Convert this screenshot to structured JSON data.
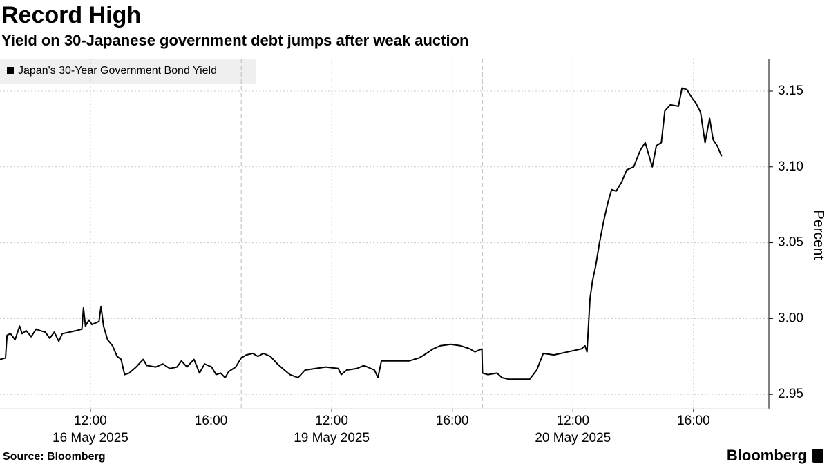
{
  "chart_data": {
    "type": "line",
    "title": "Record High",
    "subtitle": "Yield on 30-Japanese government debt jumps after weak auction",
    "y_label": "Percent",
    "source": "Source: Bloomberg",
    "brand": "Bloomberg",
    "legend": "top-left",
    "grid": true,
    "series": [
      {
        "name": "Japan's 30-Year Government Bond Yield",
        "color": "#000000",
        "x": [
          "16 May 2025 09:00",
          "16 May 2025 09:11",
          "16 May 2025 09:14",
          "16 May 2025 09:21",
          "16 May 2025 09:30",
          "16 May 2025 09:39",
          "16 May 2025 09:44",
          "16 May 2025 09:52",
          "16 May 2025 10:02",
          "16 May 2025 10:12",
          "16 May 2025 10:20",
          "16 May 2025 10:30",
          "16 May 2025 10:39",
          "16 May 2025 10:48",
          "16 May 2025 10:57",
          "16 May 2025 11:04",
          "16 May 2025 11:18",
          "16 May 2025 11:32",
          "16 May 2025 11:43",
          "16 May 2025 11:46",
          "16 May 2025 11:50",
          "16 May 2025 11:57",
          "16 May 2025 12:03",
          "16 May 2025 12:17",
          "16 May 2025 12:21",
          "16 May 2025 12:26",
          "16 May 2025 12:34",
          "16 May 2025 12:44",
          "16 May 2025 12:53",
          "16 May 2025 13:01",
          "16 May 2025 13:08",
          "16 May 2025 13:17",
          "16 May 2025 13:31",
          "16 May 2025 13:45",
          "16 May 2025 13:52",
          "16 May 2025 14:10",
          "16 May 2025 14:24",
          "16 May 2025 14:38",
          "16 May 2025 14:52",
          "16 May 2025 15:01",
          "16 May 2025 15:12",
          "16 May 2025 15:26",
          "16 May 2025 15:37",
          "16 May 2025 15:47",
          "16 May 2025 16:01",
          "16 May 2025 16:10",
          "16 May 2025 16:19",
          "16 May 2025 16:28",
          "16 May 2025 16:35",
          "16 May 2025 16:49",
          "19 May 2025 09:00",
          "19 May 2025 09:10",
          "19 May 2025 09:23",
          "19 May 2025 09:33",
          "19 May 2025 09:44",
          "19 May 2025 09:58",
          "19 May 2025 10:12",
          "19 May 2025 10:26",
          "19 May 2025 10:37",
          "19 May 2025 10:53",
          "19 May 2025 11:07",
          "19 May 2025 11:28",
          "19 May 2025 11:48",
          "19 May 2025 12:13",
          "19 May 2025 12:19",
          "19 May 2025 12:30",
          "19 May 2025 12:50",
          "19 May 2025 13:04",
          "19 May 2025 13:25",
          "19 May 2025 13:32",
          "19 May 2025 13:39",
          "19 May 2025 14:06",
          "19 May 2025 14:34",
          "19 May 2025 14:54",
          "19 May 2025 15:04",
          "19 May 2025 15:22",
          "19 May 2025 15:36",
          "19 May 2025 15:57",
          "19 May 2025 16:17",
          "19 May 2025 16:35",
          "19 May 2025 16:45",
          "19 May 2025 16:59",
          "20 May 2025 09:00",
          "20 May 2025 09:11",
          "20 May 2025 09:29",
          "20 May 2025 09:39",
          "20 May 2025 09:52",
          "20 May 2025 10:13",
          "20 May 2025 10:34",
          "20 May 2025 10:48",
          "20 May 2025 11:01",
          "20 May 2025 11:22",
          "20 May 2025 11:50",
          "20 May 2025 12:17",
          "20 May 2025 12:24",
          "20 May 2025 12:28",
          "20 May 2025 12:34",
          "20 May 2025 12:39",
          "20 May 2025 12:45",
          "20 May 2025 12:53",
          "20 May 2025 13:01",
          "20 May 2025 13:10",
          "20 May 2025 13:17",
          "20 May 2025 13:26",
          "20 May 2025 13:37",
          "20 May 2025 13:47",
          "20 May 2025 14:01",
          "20 May 2025 14:14",
          "20 May 2025 14:24",
          "20 May 2025 14:38",
          "20 May 2025 14:46",
          "20 May 2025 14:56",
          "20 May 2025 15:03",
          "20 May 2025 15:14",
          "20 May 2025 15:30",
          "20 May 2025 15:37",
          "20 May 2025 15:47",
          "20 May 2025 15:58",
          "20 May 2025 16:05",
          "20 May 2025 16:14",
          "20 May 2025 16:23",
          "20 May 2025 16:32",
          "20 May 2025 16:39",
          "20 May 2025 16:47",
          "20 May 2025 16:56"
        ],
        "values": [
          2.973,
          2.974,
          2.989,
          2.99,
          2.986,
          2.995,
          2.99,
          2.992,
          2.988,
          2.993,
          2.992,
          2.991,
          2.987,
          2.991,
          2.985,
          2.99,
          2.991,
          2.992,
          2.993,
          3.007,
          2.995,
          2.999,
          2.996,
          2.998,
          3.008,
          2.995,
          2.986,
          2.982,
          2.975,
          2.973,
          2.963,
          2.964,
          2.968,
          2.973,
          2.969,
          2.968,
          2.97,
          2.967,
          2.968,
          2.972,
          2.968,
          2.973,
          2.964,
          2.97,
          2.968,
          2.963,
          2.964,
          2.961,
          2.965,
          2.968,
          2.974,
          2.976,
          2.977,
          2.975,
          2.977,
          2.975,
          2.97,
          2.966,
          2.963,
          2.961,
          2.966,
          2.967,
          2.968,
          2.967,
          2.963,
          2.966,
          2.967,
          2.969,
          2.966,
          2.961,
          2.972,
          2.972,
          2.972,
          2.974,
          2.976,
          2.98,
          2.982,
          2.983,
          2.982,
          2.98,
          2.978,
          2.98,
          2.964,
          2.963,
          2.964,
          2.961,
          2.96,
          2.96,
          2.96,
          2.966,
          2.977,
          2.976,
          2.978,
          2.98,
          2.982,
          2.978,
          3.013,
          3.025,
          3.034,
          3.05,
          3.064,
          3.077,
          3.085,
          3.084,
          3.09,
          3.098,
          3.1,
          3.111,
          3.116,
          3.1,
          3.114,
          3.116,
          3.137,
          3.141,
          3.14,
          3.152,
          3.151,
          3.145,
          3.142,
          3.136,
          3.116,
          3.132,
          3.118,
          3.114,
          3.107
        ]
      }
    ],
    "xlim": [
      "16 May 2025 09:00",
      "20 May 2025 18:30"
    ],
    "xticks": [
      {
        "value": "16 May 2025 12:00",
        "label": "12:00"
      },
      {
        "value": "16 May 2025 16:00",
        "label": "16:00"
      },
      {
        "value": "19 May 2025 12:00",
        "label": "12:00"
      },
      {
        "value": "19 May 2025 16:00",
        "label": "16:00"
      },
      {
        "value": "20 May 2025 12:00",
        "label": "12:00"
      },
      {
        "value": "20 May 2025 16:00",
        "label": "16:00"
      }
    ],
    "x_date_labels": [
      {
        "value": "16 May 2025 12:00",
        "label": "16 May 2025"
      },
      {
        "value": "19 May 2025 12:00",
        "label": "19 May 2025"
      },
      {
        "value": "20 May 2025 12:00",
        "label": "20 May 2025"
      }
    ],
    "ylim": [
      2.9405,
      3.1714
    ],
    "yticks": [
      2.95,
      {
        "value": 3,
        "label": "3.00"
      },
      3.05,
      {
        "value": 3.1,
        "label": "3.10"
      },
      3.15
    ]
  }
}
